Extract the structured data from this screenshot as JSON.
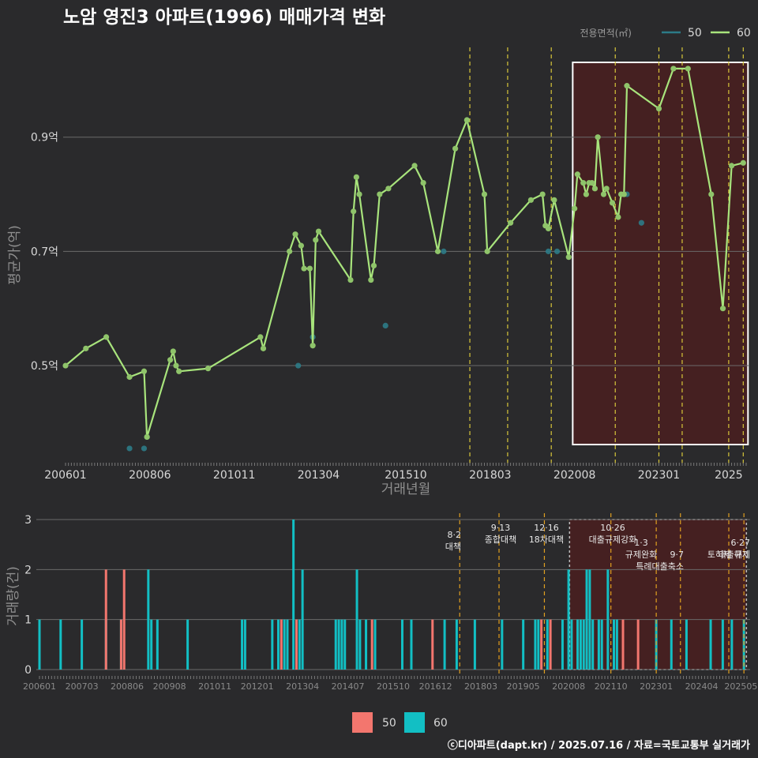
{
  "title": "노암 영진3 아파트(1996) 매매가격 변화",
  "caption": "ⓒ디아파트(dapt.kr) / 2025.07.16 / 자료=국토교통부 실거래가",
  "colors": {
    "s50_line": "#2c7b87",
    "s60_line": "#a8e47c",
    "bar50": "#f3766e",
    "bar60": "#12bfc4",
    "bg": "#2a2a2c"
  },
  "chart_data": [
    {
      "type": "line",
      "xlabel": "거래년월",
      "ylabel": "평균가(억)",
      "ylim": [
        0.33,
        1.06
      ],
      "yticks": [
        0.5,
        0.7,
        0.9
      ],
      "ytick_labels": [
        "0.5억",
        "0.7억",
        "0.9억"
      ],
      "xticks": [
        "200601",
        "200806",
        "201011",
        "201304",
        "201510",
        "201803",
        "202008",
        "202301",
        "2025"
      ],
      "legend": {
        "title": "전용면적(㎡)",
        "position": "top-right",
        "entries": [
          "50",
          "60"
        ]
      },
      "highlight_range": [
        "2020.9",
        "2025.6"
      ],
      "policy_lines": [
        "2017.8",
        "2018.9",
        "2019.12",
        "2021.10",
        "2023.1",
        "2023.9",
        "2025.1",
        "2025.6"
      ],
      "series": [
        {
          "name": "50",
          "x": [
            "2007.11",
            "2008.4",
            "2008.5",
            "2012.9",
            "2013.2",
            "2015.3",
            "2016.11",
            "2019.11",
            "2020.2",
            "2022.2",
            "2022.7"
          ],
          "y": [
            0.355,
            0.355,
            0.375,
            0.5,
            0.55,
            0.57,
            0.7,
            0.7,
            0.7,
            0.8,
            0.75
          ]
        },
        {
          "name": "60",
          "x": [
            "2006.1",
            "2006.8",
            "2007.3",
            "2007.11",
            "2008.4",
            "2008.5",
            "2009.1",
            "2009.2",
            "2009.3",
            "2009.4",
            "2010.2",
            "2011.8",
            "2011.9",
            "2012.6",
            "2012.8",
            "2012.10",
            "2012.11",
            "2013.1",
            "2013.2",
            "2013.3",
            "2013.4",
            "2014.3",
            "2014.4",
            "2014.5",
            "2014.6",
            "2014.10",
            "2014.11",
            "2015.1",
            "2015.4",
            "2016.1",
            "2016.4",
            "2016.9",
            "2017.3",
            "2017.7",
            "2018.1",
            "2018.2",
            "2018.10",
            "2019.5",
            "2019.9",
            "2019.10",
            "2019.11",
            "2020.1",
            "2020.6",
            "2020.8",
            "2020.9",
            "2020.11",
            "2020.12",
            "2021.1",
            "2021.2",
            "2021.3",
            "2021.4",
            "2021.6",
            "2021.7",
            "2021.9",
            "2021.11",
            "2021.12",
            "2022.1",
            "2022.2",
            "2023.1",
            "2023.6",
            "2023.11",
            "2024.7",
            "2024.11",
            "2025.2",
            "2025.6"
          ],
          "y": [
            0.5,
            0.53,
            0.55,
            0.48,
            0.49,
            0.375,
            0.51,
            0.525,
            0.5,
            0.49,
            0.495,
            0.55,
            0.53,
            0.7,
            0.73,
            0.71,
            0.67,
            0.67,
            0.535,
            0.72,
            0.735,
            0.65,
            0.77,
            0.83,
            0.8,
            0.65,
            0.675,
            0.8,
            0.81,
            0.85,
            0.82,
            0.7,
            0.88,
            0.93,
            0.8,
            0.7,
            0.75,
            0.79,
            0.8,
            0.745,
            0.74,
            0.79,
            0.69,
            0.775,
            0.835,
            0.82,
            0.8,
            0.82,
            0.82,
            0.81,
            0.9,
            0.8,
            0.81,
            0.785,
            0.76,
            0.8,
            0.8,
            0.99,
            0.95,
            1.02,
            1.02,
            0.8,
            0.6,
            0.85,
            0.855
          ]
        }
      ]
    },
    {
      "type": "bar",
      "xlabel": "",
      "ylabel": "거래량(건)",
      "ylim": [
        0,
        3
      ],
      "yticks": [
        0,
        1,
        2,
        3
      ],
      "xticks": [
        "200601",
        "200703",
        "200806",
        "200908",
        "201011",
        "201201",
        "201304",
        "201407",
        "201510",
        "201612",
        "201803",
        "201905",
        "202008",
        "202110",
        "202301",
        "202404",
        "202505"
      ],
      "legend": {
        "position": "bottom",
        "entries": [
          "50",
          "60"
        ]
      },
      "policy_labels": [
        {
          "date": "2017.8",
          "text": "8·2 대책"
        },
        {
          "date": "2018.9",
          "text": "9·13 종합대책"
        },
        {
          "date": "2019.12",
          "text": "12·16 18차대책"
        },
        {
          "date": "2021.10",
          "text": "10·26 대출규제강화"
        },
        {
          "date": "2023.1",
          "text": "1·3 규제완화"
        },
        {
          "date": "2023.9",
          "text": "9·7 특례대출축소"
        },
        {
          "date": "2025.1",
          "text": "토허제 해제"
        },
        {
          "date": "2025.6",
          "text": "6·27 대출규제"
        }
      ],
      "series": [
        {
          "name": "50",
          "x": [
            "2007.11",
            "2008.4",
            "2008.5",
            "2012.9",
            "2013.2",
            "2015.3",
            "2016.11",
            "2019.11",
            "2020.2",
            "2022.2",
            "2022.7"
          ],
          "values": [
            2,
            1,
            2,
            1,
            1,
            1,
            1,
            1,
            1,
            1,
            1
          ]
        },
        {
          "name": "60",
          "x": [
            "2006.1",
            "2006.8",
            "2007.3",
            "2007.11",
            "2008.4",
            "2009.1",
            "2009.2",
            "2009.4",
            "2010.2",
            "2011.8",
            "2011.9",
            "2012.6",
            "2012.8",
            "2012.10",
            "2012.11",
            "2013.1",
            "2013.3",
            "2013.4",
            "2014.3",
            "2014.4",
            "2014.5",
            "2014.6",
            "2014.10",
            "2014.11",
            "2015.1",
            "2015.4",
            "2016.1",
            "2016.4",
            "2017.3",
            "2017.7",
            "2018.1",
            "2018.10",
            "2019.5",
            "2019.9",
            "2019.10",
            "2020.1",
            "2020.6",
            "2020.8",
            "2020.9",
            "2020.11",
            "2020.12",
            "2021.1",
            "2021.2",
            "2021.3",
            "2021.4",
            "2021.6",
            "2021.7",
            "2021.9",
            "2021.11",
            "2021.12",
            "2022.2",
            "2023.1",
            "2023.6",
            "2023.11",
            "2024.7",
            "2024.11",
            "2025.2",
            "2025.6"
          ],
          "values": [
            1,
            1,
            1,
            1,
            1,
            2,
            1,
            1,
            1,
            1,
            1,
            1,
            1,
            1,
            1,
            3,
            1,
            2,
            1,
            1,
            1,
            1,
            2,
            1,
            1,
            1,
            1,
            1,
            1,
            1,
            1,
            1,
            1,
            1,
            1,
            1,
            1,
            2,
            1,
            1,
            1,
            1,
            2,
            2,
            1,
            1,
            1,
            2,
            1,
            1,
            1,
            1,
            1,
            1,
            1,
            1,
            1,
            1
          ]
        }
      ]
    }
  ]
}
